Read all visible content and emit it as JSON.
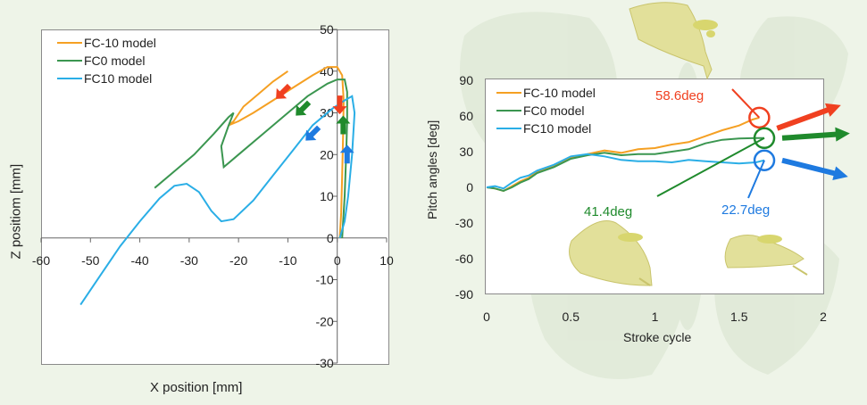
{
  "colors": {
    "fc_minus10": "#f5a023",
    "fc0": "#3b9650",
    "fc10": "#2aaee6",
    "arrow_red": "#f04020",
    "arrow_green": "#1f8a2c",
    "arrow_blue": "#1e7ae0",
    "wing": "#e2e09a",
    "background": "#eef4e8"
  },
  "chart_data": [
    {
      "type": "line",
      "xlabel": "X position [mm]",
      "ylabel": "Z positiom [mm]",
      "xlim": [
        -60,
        10
      ],
      "ylim": [
        -30,
        50
      ],
      "xticks": [
        -60,
        -50,
        -40,
        -30,
        -20,
        -10,
        0,
        10
      ],
      "yticks": [
        -30,
        -20,
        -10,
        0,
        10,
        20,
        30,
        40,
        50
      ],
      "grid": false,
      "legend_position": "top-left",
      "series": [
        {
          "name": "FC-10 model",
          "color": "#f5a023",
          "points": [
            [
              -10,
              40
            ],
            [
              -13,
              37.5
            ],
            [
              -16,
              34.5
            ],
            [
              -19,
              31.5
            ],
            [
              -21,
              28
            ],
            [
              -22,
              27
            ],
            [
              -20,
              28
            ],
            [
              -17,
              30
            ],
            [
              -13,
              33
            ],
            [
              -9,
              36
            ],
            [
              -5,
              39
            ],
            [
              -2,
              41
            ],
            [
              0,
              41
            ],
            [
              1,
              39
            ],
            [
              1.3,
              33
            ],
            [
              1.2,
              25
            ],
            [
              1,
              15
            ],
            [
              0.8,
              6
            ],
            [
              0.5,
              0
            ]
          ]
        },
        {
          "name": "FC0 model",
          "color": "#3b9650",
          "points": [
            [
              -37,
              12
            ],
            [
              -33,
              16
            ],
            [
              -29,
              20
            ],
            [
              -25,
              25
            ],
            [
              -22,
              29
            ],
            [
              -21,
              30
            ],
            [
              -22,
              27
            ],
            [
              -23.5,
              22
            ],
            [
              -23,
              17
            ],
            [
              -20,
              20
            ],
            [
              -15,
              25
            ],
            [
              -10,
              30
            ],
            [
              -6,
              34
            ],
            [
              -2,
              37
            ],
            [
              0,
              38
            ],
            [
              1.5,
              38
            ],
            [
              2,
              35
            ],
            [
              2,
              28
            ],
            [
              1.8,
              20
            ],
            [
              1.5,
              10
            ],
            [
              1,
              0
            ]
          ]
        },
        {
          "name": "FC10 model",
          "color": "#2aaee6",
          "points": [
            [
              -52,
              -16
            ],
            [
              -48,
              -9
            ],
            [
              -44,
              -2
            ],
            [
              -40,
              4
            ],
            [
              -36,
              9.5
            ],
            [
              -33,
              12.5
            ],
            [
              -30.5,
              13
            ],
            [
              -28,
              11
            ],
            [
              -25.5,
              6.5
            ],
            [
              -23.5,
              4
            ],
            [
              -21,
              4.5
            ],
            [
              -17,
              9
            ],
            [
              -13,
              15
            ],
            [
              -9,
              21
            ],
            [
              -5,
              27
            ],
            [
              -1,
              31
            ],
            [
              1.5,
              33
            ],
            [
              3,
              34
            ],
            [
              3.5,
              30
            ],
            [
              3,
              20
            ],
            [
              2.2,
              10
            ],
            [
              1.5,
              4
            ],
            [
              0.5,
              0
            ]
          ]
        }
      ]
    },
    {
      "type": "line",
      "xlabel": "Stroke cycle",
      "ylabel": "Pitch angles [deg]",
      "xlim": [
        0,
        2
      ],
      "ylim": [
        -90,
        90
      ],
      "xticks": [
        "0",
        "0.5",
        "1",
        "1.5",
        "2"
      ],
      "yticks": [
        "90",
        "60",
        "30",
        "0",
        "-30",
        "-60",
        "-90"
      ],
      "grid": false,
      "legend_position": "top-left",
      "series": [
        {
          "name": "FC-10 model",
          "color": "#f5a023",
          "points": [
            [
              0,
              0
            ],
            [
              0.05,
              -1
            ],
            [
              0.1,
              -3
            ],
            [
              0.15,
              1
            ],
            [
              0.2,
              5
            ],
            [
              0.25,
              8
            ],
            [
              0.3,
              13
            ],
            [
              0.4,
              18
            ],
            [
              0.5,
              25
            ],
            [
              0.6,
              28
            ],
            [
              0.7,
              31
            ],
            [
              0.8,
              29
            ],
            [
              0.9,
              32
            ],
            [
              1.0,
              33
            ],
            [
              1.1,
              36
            ],
            [
              1.2,
              38
            ],
            [
              1.3,
              43
            ],
            [
              1.4,
              48
            ],
            [
              1.5,
              52
            ],
            [
              1.58,
              57
            ],
            [
              1.62,
              58.6
            ]
          ]
        },
        {
          "name": "FC0 model",
          "color": "#3b9650",
          "points": [
            [
              0,
              0
            ],
            [
              0.05,
              -1
            ],
            [
              0.1,
              -3
            ],
            [
              0.15,
              0
            ],
            [
              0.2,
              4
            ],
            [
              0.25,
              7
            ],
            [
              0.3,
              12
            ],
            [
              0.4,
              17
            ],
            [
              0.5,
              24
            ],
            [
              0.6,
              27
            ],
            [
              0.7,
              29
            ],
            [
              0.8,
              27
            ],
            [
              0.9,
              28
            ],
            [
              1.0,
              28
            ],
            [
              1.1,
              30
            ],
            [
              1.2,
              32
            ],
            [
              1.3,
              37
            ],
            [
              1.4,
              40
            ],
            [
              1.5,
              41
            ],
            [
              1.6,
              41.4
            ],
            [
              1.65,
              41.4
            ]
          ]
        },
        {
          "name": "FC10 model",
          "color": "#2aaee6",
          "points": [
            [
              0,
              0
            ],
            [
              0.05,
              1
            ],
            [
              0.1,
              -1
            ],
            [
              0.15,
              4
            ],
            [
              0.2,
              8
            ],
            [
              0.25,
              10
            ],
            [
              0.3,
              14
            ],
            [
              0.4,
              19
            ],
            [
              0.5,
              26
            ],
            [
              0.6,
              28
            ],
            [
              0.7,
              26
            ],
            [
              0.8,
              23
            ],
            [
              0.9,
              22
            ],
            [
              1.0,
              22
            ],
            [
              1.1,
              21
            ],
            [
              1.2,
              23
            ],
            [
              1.3,
              22
            ],
            [
              1.4,
              21
            ],
            [
              1.5,
              20
            ],
            [
              1.6,
              21
            ],
            [
              1.65,
              22.7
            ]
          ]
        }
      ],
      "annotations": [
        {
          "text": "58.6deg",
          "x": 1.62,
          "y": 58.6,
          "color": "#f04020"
        },
        {
          "text": "41.4deg",
          "x": 1.65,
          "y": 41.4,
          "color": "#1f8a2c"
        },
        {
          "text": "22.7deg",
          "x": 1.65,
          "y": 22.7,
          "color": "#1e7ae0"
        }
      ]
    }
  ],
  "direction_arrows": [
    {
      "color": "#f04020",
      "x": -11,
      "y": 35,
      "direction": "down-left"
    },
    {
      "color": "#1f8a2c",
      "x": -7,
      "y": 31,
      "direction": "down-left"
    },
    {
      "color": "#1e7ae0",
      "x": -5,
      "y": 25,
      "direction": "down-left"
    },
    {
      "color": "#f04020",
      "x": 0.5,
      "y": 32,
      "direction": "down"
    },
    {
      "color": "#1f8a2c",
      "x": 1.2,
      "y": 27,
      "direction": "up"
    },
    {
      "color": "#1e7ae0",
      "x": 2,
      "y": 20,
      "direction": "up"
    }
  ],
  "icons": [
    "butterfly-wing-icon",
    "wing-model-icon"
  ]
}
